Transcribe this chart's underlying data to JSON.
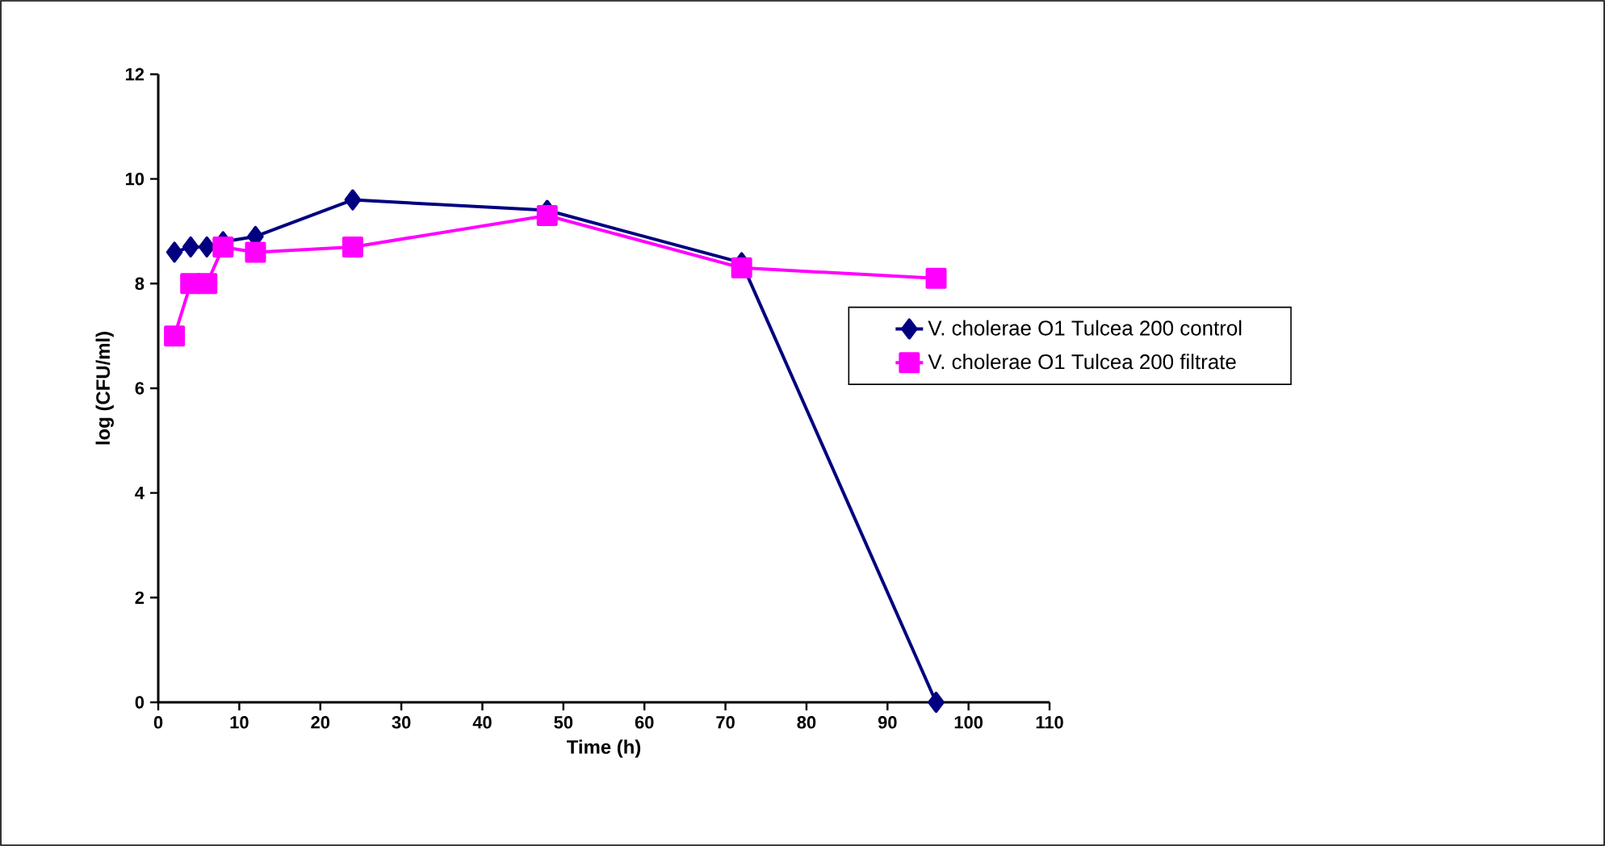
{
  "chart_data": {
    "type": "line",
    "xlabel": "Time (h)",
    "ylabel": "log (CFU/ml)",
    "xlim": [
      0,
      110
    ],
    "xticks": [
      0,
      10,
      20,
      30,
      40,
      50,
      60,
      70,
      80,
      90,
      100,
      110
    ],
    "ylim": [
      0,
      12
    ],
    "yticks": [
      0,
      2,
      4,
      6,
      8,
      10,
      12
    ],
    "grid": false,
    "legend": "right",
    "line_style": "solid",
    "series": [
      {
        "name": "V. cholerae O1 Tulcea 200 control",
        "color": "#000080",
        "marker": "diamond",
        "x": [
          2,
          4,
          6,
          8,
          12,
          24,
          48,
          72,
          96
        ],
        "values": [
          8.6,
          8.7,
          8.7,
          8.8,
          8.9,
          9.6,
          9.4,
          8.4,
          0
        ]
      },
      {
        "name": "V. cholerae O1 Tulcea 200 filtrate",
        "color": "#ff00ff",
        "marker": "square",
        "x": [
          2,
          4,
          6,
          8,
          12,
          24,
          48,
          72,
          96
        ],
        "values": [
          7.0,
          8.0,
          8.0,
          8.7,
          8.6,
          8.7,
          9.3,
          8.3,
          8.1
        ]
      }
    ]
  }
}
